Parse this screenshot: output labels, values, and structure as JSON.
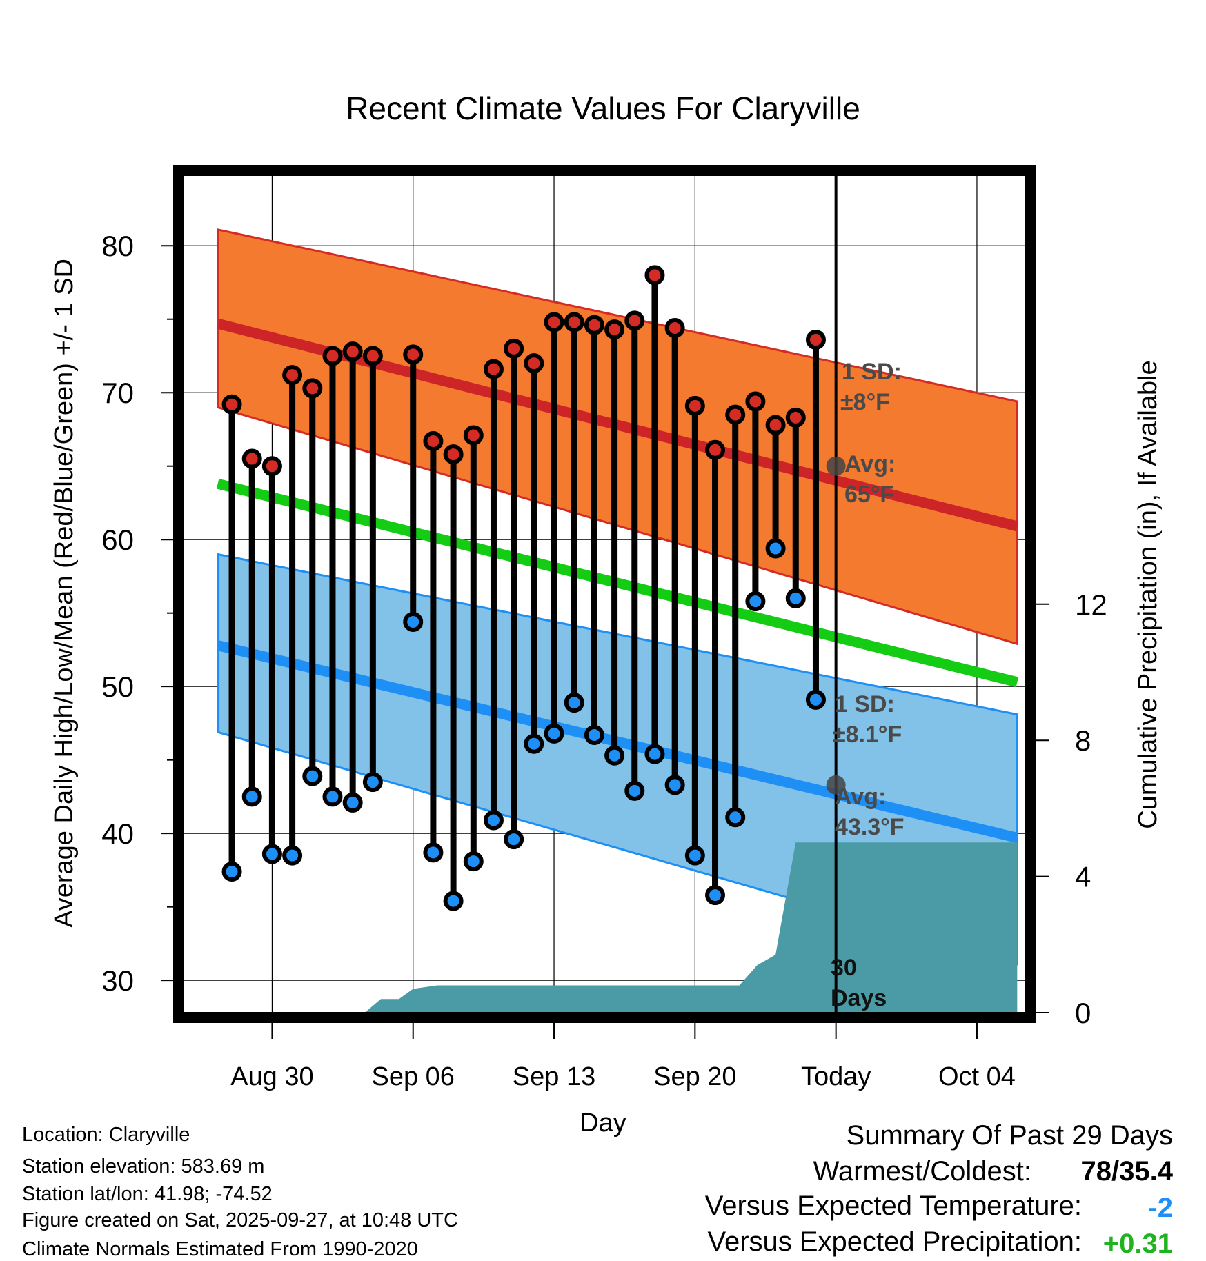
{
  "chart_data": {
    "type": "line",
    "title": "Recent Climate Values For Claryville",
    "xlabel": "Day",
    "ylabel": "Average Daily High/Low/Mean (Red/Blue/Green) +/- 1 SD",
    "y2label": "Cumulative Precipitation (in), If Available",
    "xlim": [
      -4.4,
      37.4
    ],
    "ylim": [
      27.8,
      84.8
    ],
    "y2lim": [
      0,
      24.6
    ],
    "yticks": [
      30,
      40,
      50,
      60,
      70,
      80
    ],
    "y2ticks": [
      0,
      4,
      8,
      12
    ],
    "xticks": [
      {
        "day": 0,
        "label": "Aug 30"
      },
      {
        "day": 7,
        "label": "Sep 06"
      },
      {
        "day": 14,
        "label": "Sep 13"
      },
      {
        "day": 21,
        "label": "Sep 20"
      },
      {
        "day": 28,
        "label": "Today"
      },
      {
        "day": 35,
        "label": "Oct 04"
      }
    ],
    "days": [
      -2,
      -1,
      0,
      1,
      2,
      3,
      4,
      5,
      7,
      8,
      9,
      10,
      11,
      12,
      13,
      14,
      15,
      16,
      17,
      18,
      19,
      20,
      21,
      22,
      23,
      24,
      25,
      26,
      27
    ],
    "highs": [
      69.2,
      65.5,
      65.0,
      71.2,
      70.3,
      72.5,
      72.8,
      72.5,
      72.6,
      66.7,
      65.8,
      67.1,
      71.6,
      73.0,
      72.0,
      74.8,
      74.8,
      74.6,
      74.3,
      74.9,
      78.0,
      74.4,
      69.1,
      66.1,
      68.5,
      69.4,
      67.8,
      68.3,
      73.6
    ],
    "lows": [
      37.4,
      42.5,
      38.6,
      38.5,
      43.9,
      42.5,
      42.1,
      43.5,
      54.4,
      38.7,
      35.4,
      38.1,
      40.9,
      39.6,
      46.1,
      46.8,
      48.9,
      46.7,
      45.3,
      42.9,
      45.4,
      43.3,
      38.5,
      35.8,
      41.1,
      55.8,
      59.4,
      56.0,
      49.1
    ],
    "normals": {
      "days": [
        -2.7,
        37.0
      ],
      "high": [
        74.7,
        60.9
      ],
      "high_sd_upper": [
        81.1,
        69.4
      ],
      "high_sd_lower": [
        69.0,
        52.9
      ],
      "low": [
        52.8,
        39.7
      ],
      "low_sd_upper": [
        59.0,
        48.1
      ],
      "low_sd_lower": [
        46.9,
        31.1
      ],
      "mean": [
        63.8,
        50.3
      ]
    },
    "precip_days": [
      -2.7,
      4.6,
      5.4,
      6.3,
      7.0,
      8.2,
      23.2,
      24.1,
      25.0,
      26.0,
      37.0
    ],
    "precip_values": [
      0,
      0,
      0.4,
      0.4,
      0.7,
      0.8,
      0.8,
      1.4,
      1.7,
      5.0,
      5.0
    ],
    "annotations": {
      "high_sd": "1 SD:",
      "high_sd_value": "±8°F",
      "high_avg": "Avg:",
      "high_avg_value": "65°F",
      "low_sd": "1 SD:",
      "low_sd_value": "±8.1°F",
      "low_avg": "Avg:",
      "low_avg_value": "43.3°F",
      "window_count": "30",
      "window_unit": "Days"
    },
    "today_high_avg": 65,
    "today_low_avg": 43.3
  },
  "footer": {
    "location": "Location: Claryville",
    "elevation": "Station elevation: 583.69 m",
    "latlon": "Station lat/lon: 41.98; -74.52",
    "created": "Figure created on Sat, 2025-09-27, at 10:48 UTC",
    "normals": "Climate Normals Estimated From 1990-2020"
  },
  "summary": {
    "title": "Summary Of Past 29 Days",
    "warmest_label": "Warmest/Coldest:",
    "warmest_value": "78/35.4",
    "temp_label": "Versus Expected Temperature:",
    "temp_value": "-2",
    "precip_label": "Versus Expected Precipitation:",
    "precip_value": "+0.31"
  },
  "colors": {
    "high_band": "#F47A2F",
    "high_band_edge": "#D42B25",
    "high_line": "#CC2427",
    "low_band": "#82C2E8",
    "low_band_edge": "#1E8FF5",
    "low_line": "#1E8FF5",
    "mean_line": "#14CC14",
    "precip": "#4A9BA5",
    "high_dot": "#D42B25",
    "low_dot": "#1E8FF5",
    "annotation": "#4A4A4A",
    "temp_value": "#1E8FF5",
    "precip_value": "#1FB41F"
  }
}
